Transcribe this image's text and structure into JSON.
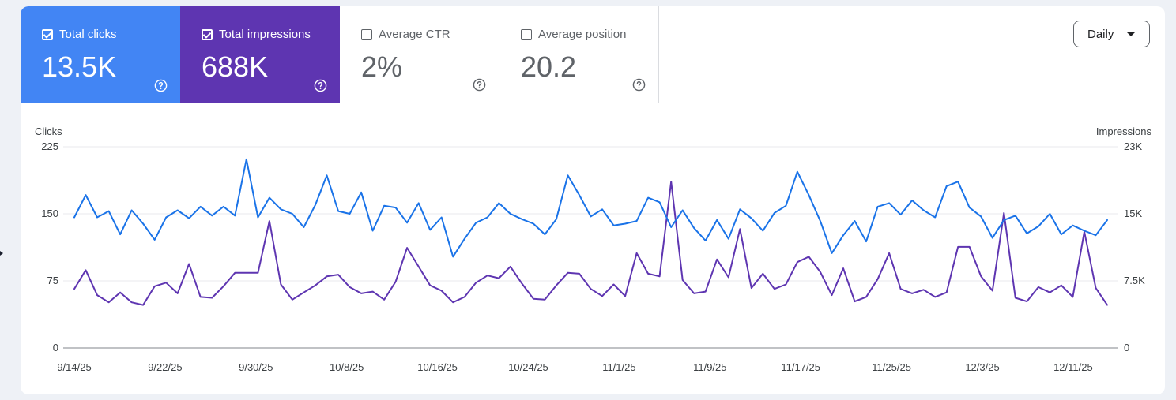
{
  "metrics": [
    {
      "label": "Total clicks",
      "value": "13.5K",
      "checked": true,
      "color": "#4285f4"
    },
    {
      "label": "Total impressions",
      "value": "688K",
      "checked": true,
      "color": "#5e35b1"
    },
    {
      "label": "Average CTR",
      "value": "2%",
      "checked": false,
      "color": "#ffffff"
    },
    {
      "label": "Average position",
      "value": "20.2",
      "checked": false,
      "color": "#ffffff"
    }
  ],
  "help_icon": "help-circle-icon",
  "granularity": {
    "label": "Daily",
    "icon": "dropdown-caret-icon"
  },
  "chart_data": {
    "type": "line",
    "left_axis_title": "Clicks",
    "right_axis_title": "Impressions",
    "left_ticks": [
      "0",
      "75",
      "150",
      "225"
    ],
    "right_ticks": [
      "0",
      "7.5K",
      "15K",
      "23K"
    ],
    "left_ylim": [
      0,
      225
    ],
    "right_ylim": [
      0,
      22500
    ],
    "x_tick_labels": [
      "9/14/25",
      "9/22/25",
      "9/30/25",
      "10/8/25",
      "10/16/25",
      "10/24/25",
      "11/1/25",
      "11/9/25",
      "11/17/25",
      "11/25/25",
      "12/3/25",
      "12/11/25"
    ],
    "x_range": [
      "9/14/25",
      "12/14/25"
    ],
    "grid": "horizontal",
    "series": [
      {
        "name": "Total clicks",
        "axis": "left",
        "color": "#1a73e8",
        "values": [
          146,
          171,
          146,
          153,
          127,
          154,
          139,
          121,
          146,
          154,
          145,
          158,
          148,
          158,
          148,
          211,
          146,
          168,
          155,
          150,
          135,
          160,
          193,
          153,
          150,
          174,
          131,
          159,
          157,
          140,
          162,
          132,
          146,
          102,
          122,
          140,
          146,
          162,
          150,
          144,
          139,
          127,
          144,
          193,
          171,
          147,
          155,
          137,
          139,
          142,
          168,
          163,
          135,
          154,
          134,
          120,
          143,
          122,
          155,
          145,
          131,
          151,
          159,
          197,
          171,
          142,
          106,
          126,
          142,
          119,
          158,
          162,
          149,
          165,
          154,
          146,
          181,
          186,
          157,
          147,
          123,
          143,
          148,
          128,
          136,
          150,
          127,
          137,
          131,
          126,
          143
        ]
      },
      {
        "name": "Total impressions",
        "axis": "right",
        "color": "#5e35b1",
        "values": [
          6600,
          8700,
          5900,
          5100,
          6200,
          5100,
          4800,
          6900,
          7300,
          6100,
          9400,
          5700,
          5600,
          6900,
          8400,
          8400,
          8400,
          14200,
          7100,
          5400,
          6200,
          7000,
          8000,
          8200,
          6800,
          6100,
          6300,
          5400,
          7400,
          11200,
          9100,
          7000,
          6400,
          5100,
          5700,
          7300,
          8100,
          7800,
          9100,
          7200,
          5500,
          5400,
          7000,
          8400,
          8300,
          6600,
          5800,
          7100,
          5800,
          10600,
          8300,
          8000,
          18600,
          7600,
          6100,
          6300,
          9900,
          7900,
          13300,
          6700,
          8300,
          6600,
          7100,
          9600,
          10200,
          8500,
          5900,
          8900,
          5200,
          5700,
          7700,
          10600,
          6600,
          6100,
          6500,
          5700,
          6200,
          11300,
          11300,
          8000,
          6400,
          15100,
          5600,
          5200,
          6800,
          6200,
          7000,
          5700,
          13000,
          6700,
          4800
        ]
      }
    ]
  }
}
